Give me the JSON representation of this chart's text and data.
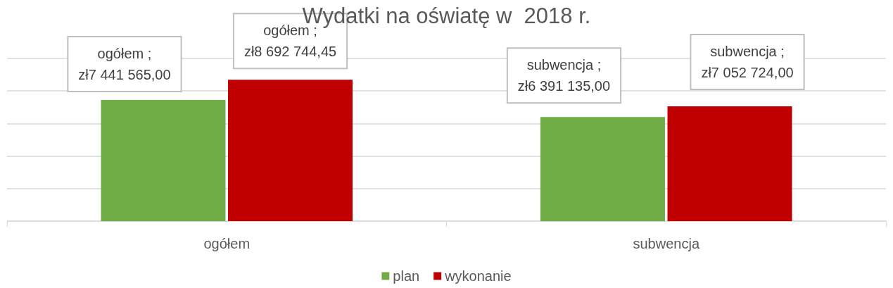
{
  "chart_data": {
    "type": "bar",
    "title": "Wydatki na oświatę w  2018 r.",
    "categories": [
      "ogółem",
      "subwencja"
    ],
    "series": [
      {
        "name": "plan",
        "color": "#70ad47",
        "values": [
          7441565.0,
          6391135.0
        ],
        "value_labels": [
          "ogółem ;\nzł7 441 565,00",
          "subwencja ;\nzł6 391 135,00"
        ]
      },
      {
        "name": "wykonanie",
        "color": "#c00000",
        "values": [
          8692744.45,
          7052724.0
        ],
        "value_labels": [
          "ogółem ;\nzł8 692 744,45",
          "subwencja ;\nzł7 052 724,00"
        ]
      }
    ],
    "ylim": [
      0,
      10000000
    ],
    "yticks": [
      {
        "value": 0,
        "label": null
      },
      {
        "value": 2000000,
        "label": null
      },
      {
        "value": 4000000,
        "label": null
      },
      {
        "value": 6000000,
        "label": null
      },
      {
        "value": 8000000,
        "label": null
      },
      {
        "value": 10000000,
        "label": null
      }
    ],
    "tick_labels": "x",
    "grid": "y",
    "legend": "bottom"
  }
}
